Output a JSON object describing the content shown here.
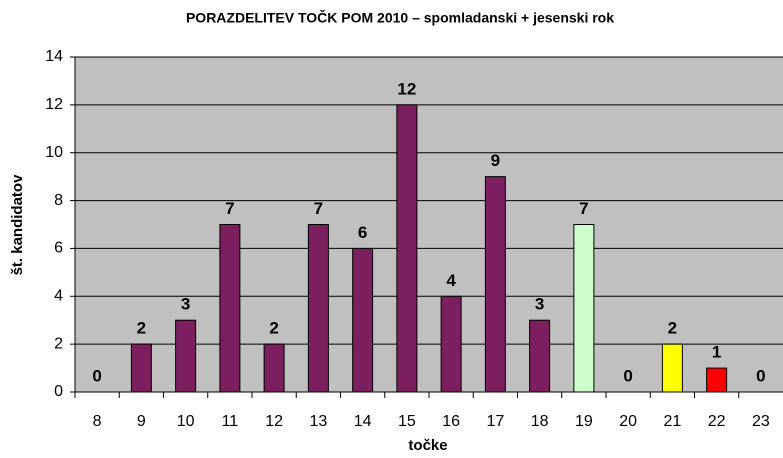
{
  "chart_data": {
    "type": "bar",
    "title": "PORAZDELITEV TOČK POM 2010 – spomladanski + jesenski rok",
    "xlabel": "točke",
    "ylabel": "št. kandidatov",
    "categories": [
      "8",
      "9",
      "10",
      "11",
      "12",
      "13",
      "14",
      "15",
      "16",
      "17",
      "18",
      "19",
      "20",
      "21",
      "22",
      "23"
    ],
    "values": [
      0,
      2,
      3,
      7,
      2,
      7,
      6,
      12,
      4,
      9,
      3,
      7,
      0,
      2,
      1,
      0
    ],
    "colors": [
      "#7b1f5e",
      "#7b1f5e",
      "#7b1f5e",
      "#7b1f5e",
      "#7b1f5e",
      "#7b1f5e",
      "#7b1f5e",
      "#7b1f5e",
      "#7b1f5e",
      "#7b1f5e",
      "#7b1f5e",
      "#ccffcc",
      "#7b1f5e",
      "#ffff00",
      "#ff0000",
      "#7b1f5e"
    ],
    "ylim": [
      0,
      14
    ],
    "yticks": [
      0,
      2,
      4,
      6,
      8,
      10,
      12,
      14
    ],
    "grid": true
  }
}
